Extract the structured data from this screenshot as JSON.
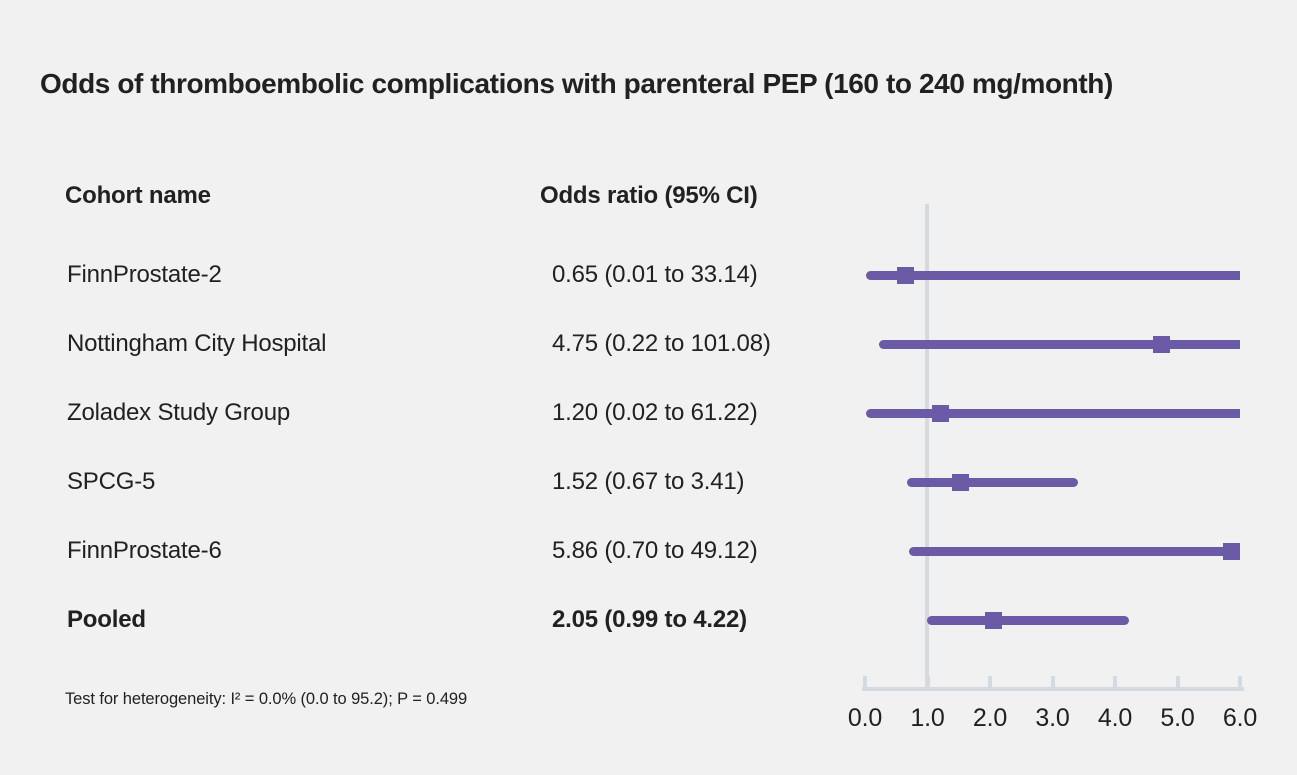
{
  "title": "Odds of thromboembolic complications with parenteral PEP (160 to 240 mg/month)",
  "columns": {
    "cohort": "Cohort name",
    "odds_ratio": "Odds ratio (95% CI)"
  },
  "footnote": "Test for heterogeneity: I² = 0.0% (0.0 to 95.2); P = 0.499",
  "colors": {
    "background": "#f2f1f1",
    "text": "#212121",
    "marker": "#6b5aa6",
    "axis": "#d5d9e0"
  },
  "chart_data": {
    "type": "forest",
    "title": "Odds of thromboembolic complications with parenteral PEP (160 to 240 mg/month)",
    "xlabel": "Odds ratio",
    "xlim": [
      0.0,
      6.0
    ],
    "reference_line": 1.0,
    "tick_labels": [
      "0.0",
      "1.0",
      "2.0",
      "3.0",
      "4.0",
      "5.0",
      "6.0"
    ],
    "legend": "none",
    "grid": false,
    "rows": [
      {
        "name": "FinnProstate-2",
        "label": "0.65 (0.01 to 33.14)",
        "or": 0.65,
        "ci_low": 0.01,
        "ci_high": 33.14,
        "pooled": false
      },
      {
        "name": "Nottingham City Hospital",
        "label": "4.75 (0.22 to 101.08)",
        "or": 4.75,
        "ci_low": 0.22,
        "ci_high": 101.08,
        "pooled": false
      },
      {
        "name": "Zoladex Study Group",
        "label": "1.20 (0.02 to 61.22)",
        "or": 1.2,
        "ci_low": 0.02,
        "ci_high": 61.22,
        "pooled": false
      },
      {
        "name": "SPCG-5",
        "label": "1.52 (0.67 to 3.41)",
        "or": 1.52,
        "ci_low": 0.67,
        "ci_high": 3.41,
        "pooled": false
      },
      {
        "name": "FinnProstate-6",
        "label": "5.86 (0.70 to 49.12)",
        "or": 5.86,
        "ci_low": 0.7,
        "ci_high": 49.12,
        "pooled": false
      },
      {
        "name": "Pooled",
        "label": "2.05 (0.99 to 4.22)",
        "or": 2.05,
        "ci_low": 0.99,
        "ci_high": 4.22,
        "pooled": true
      }
    ],
    "heterogeneity": "Test for heterogeneity: I² = 0.0% (0.0 to 95.2); P = 0.499"
  }
}
